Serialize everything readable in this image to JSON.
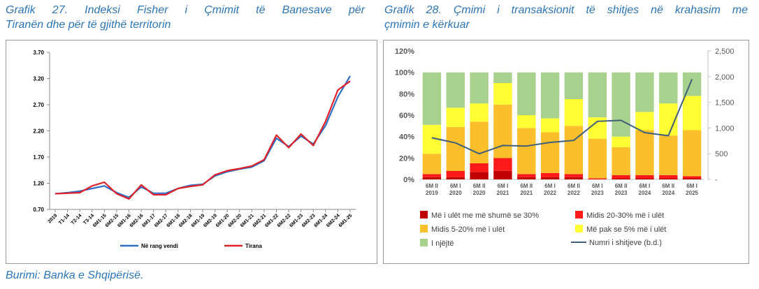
{
  "left_caption": {
    "line1": "Grafik 27. Indeksi Fisher i Çmimit të Banesave për",
    "line2": "Tiranën dhe për të gjithë territorin"
  },
  "right_caption": {
    "line1": "Grafik 28. Çmimi i transaksionit të shitjes në krahasim me",
    "line2": "çmimin e kërkuar"
  },
  "source": "Burimi: Banka e Shqipërisë.",
  "colors": {
    "caption": "#2e75b6",
    "national": "#2f6fc3",
    "tirana": "#e0202a",
    "darkred": "#c00000",
    "red": "#ff1a1a",
    "orange": "#fbbf2b",
    "yellow": "#ffff33",
    "green": "#a9d18e",
    "transactions": "#3f5f7a"
  },
  "chart_data": [
    {
      "type": "line",
      "title": "",
      "categories": [
        "2019",
        "T1-14",
        "T2-14",
        "T3-14",
        "6M1-15",
        "6M2-15",
        "6M1-16",
        "6M2-16",
        "6M1-17",
        "6M2-17",
        "6M1-18",
        "6M2-18",
        "6M1-19",
        "6M2-19",
        "6M1-20",
        "6M2-20",
        "6M1-21",
        "6M2-21",
        "6M1-22",
        "6M2-22",
        "6M1-23",
        "6M2-23",
        "6M1-24",
        "6M2-24",
        "6M1-25"
      ],
      "series": [
        {
          "name": "Në rang vendi",
          "values": [
            1.0,
            1.02,
            1.05,
            1.1,
            1.15,
            1.02,
            0.93,
            1.13,
            1.01,
            1.01,
            1.1,
            1.16,
            1.18,
            1.34,
            1.42,
            1.47,
            1.51,
            1.63,
            2.06,
            1.9,
            2.1,
            1.95,
            2.3,
            2.85,
            3.25
          ]
        },
        {
          "name": "Tirana",
          "values": [
            1.0,
            1.01,
            1.02,
            1.15,
            1.22,
            1.0,
            0.9,
            1.17,
            0.98,
            0.98,
            1.1,
            1.14,
            1.17,
            1.36,
            1.44,
            1.48,
            1.53,
            1.65,
            2.12,
            1.88,
            2.14,
            1.92,
            2.38,
            2.98,
            3.15
          ]
        }
      ],
      "yticks": [
        "3.70",
        "3.20",
        "2.70",
        "2.20",
        "1.70",
        "1.20",
        "0.70"
      ],
      "ylim": [
        0.7,
        3.7
      ],
      "legend_position": "bottom",
      "grid": false
    },
    {
      "type": "bar",
      "title": "",
      "categories": [
        {
          "line1": "6M II",
          "line2": "2019"
        },
        {
          "line1": "6M I",
          "line2": "2020"
        },
        {
          "line1": "6M II",
          "line2": "2020"
        },
        {
          "line1": "6M I",
          "line2": "2021"
        },
        {
          "line1": "6M II",
          "line2": "2021"
        },
        {
          "line1": "6M I",
          "line2": "2022"
        },
        {
          "line1": "6M II",
          "line2": "2022"
        },
        {
          "line1": "6M I",
          "line2": "2023"
        },
        {
          "line1": "6M II",
          "line2": "2023"
        },
        {
          "line1": "6M I",
          "line2": "2024"
        },
        {
          "line1": "6M II",
          "line2": "2024"
        },
        {
          "line1": "6M I",
          "line2": "2025"
        }
      ],
      "stacked": true,
      "series": [
        {
          "name": "Më i ulët me më shumë se 30%",
          "values": [
            2,
            2,
            7,
            8,
            2,
            2,
            2,
            0,
            1,
            1,
            1,
            1
          ]
        },
        {
          "name": "Midis 20-30% më i ulët",
          "values": [
            3,
            6,
            8,
            12,
            3,
            4,
            3,
            1,
            3,
            3,
            3,
            2
          ]
        },
        {
          "name": "Midis 5-20% më i ulët",
          "values": [
            19,
            41,
            39,
            50,
            43,
            38,
            45,
            37,
            26,
            42,
            37,
            43
          ]
        },
        {
          "name": "Më pak se 5% më i ulët",
          "values": [
            27,
            18,
            17,
            20,
            12,
            13,
            25,
            20,
            10,
            17,
            30,
            32
          ]
        },
        {
          "name": "I njëjtë",
          "values": [
            49,
            33,
            29,
            10,
            40,
            43,
            25,
            42,
            60,
            37,
            29,
            22
          ]
        }
      ],
      "line_series": {
        "name": "Numri i shitjeve (b.d.)",
        "values": [
          810,
          710,
          500,
          660,
          650,
          720,
          760,
          1130,
          1150,
          910,
          850,
          1950
        ]
      },
      "yticks_left": [
        "0%",
        "20%",
        "40%",
        "60%",
        "80%",
        "100%",
        "120%"
      ],
      "ylim_left": [
        0,
        120
      ],
      "yticks_right": [
        "-",
        "500",
        "1,000",
        "1,500",
        "2,000",
        "2,500"
      ],
      "ylim_right": [
        0,
        2500
      ],
      "legend_position": "bottom",
      "grid": false
    }
  ]
}
